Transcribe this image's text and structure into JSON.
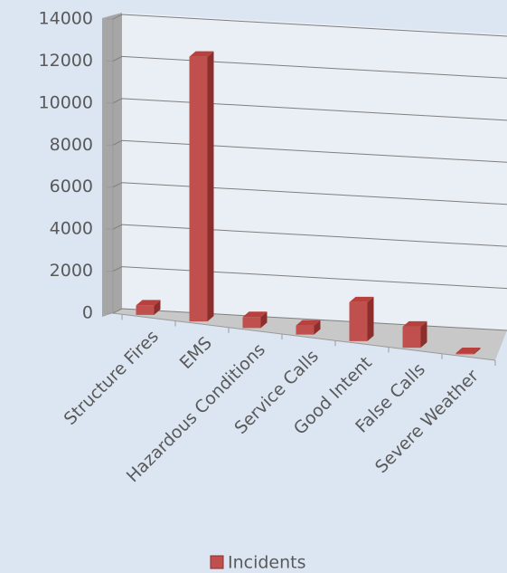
{
  "chart_data": {
    "type": "bar3d",
    "categories": [
      "Structure Fires",
      "EMS",
      "Hazardous Conditions",
      "Service Calls",
      "Good Intent",
      "False Calls",
      "Severe Weather"
    ],
    "series": [
      {
        "name": "Incidents",
        "color": "#c0504d",
        "values": [
          450,
          12600,
          520,
          430,
          1850,
          1000,
          60
        ]
      }
    ],
    "ylim": [
      0,
      14000
    ],
    "yticks": [
      0,
      2000,
      4000,
      6000,
      8000,
      10000,
      12000,
      14000
    ],
    "grid": true,
    "legend": "bottom"
  }
}
